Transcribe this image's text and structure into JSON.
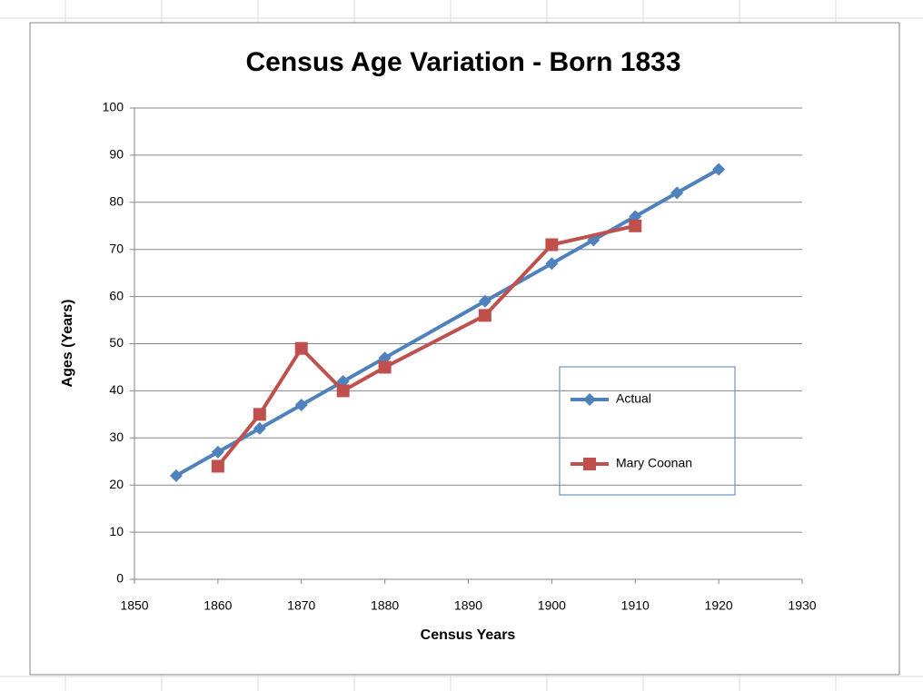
{
  "chart_data": {
    "type": "line",
    "title": "Census Age Variation - Born 1833",
    "xlabel": "Census Years",
    "ylabel": "Ages (Years)",
    "xlim": [
      1850,
      1930
    ],
    "xticks": [
      1850,
      1860,
      1870,
      1880,
      1890,
      1900,
      1910,
      1920,
      1930
    ],
    "ylim": [
      0,
      100
    ],
    "yticks": [
      0,
      10,
      20,
      30,
      40,
      50,
      60,
      70,
      80,
      90,
      100
    ],
    "grid": true,
    "legend": "right",
    "series": [
      {
        "name": "Actual",
        "color": "#4f81bd",
        "marker": "diamond",
        "x": [
          1855,
          1860,
          1865,
          1870,
          1875,
          1880,
          1892,
          1900,
          1905,
          1910,
          1915,
          1920
        ],
        "values": [
          22,
          27,
          32,
          37,
          42,
          47,
          59,
          67,
          72,
          77,
          82,
          87
        ]
      },
      {
        "name": "Mary Coonan",
        "color": "#c0504d",
        "marker": "square",
        "x": [
          1860,
          1865,
          1870,
          1875,
          1880,
          1892,
          1900,
          1910
        ],
        "values": [
          24,
          35,
          49,
          40,
          45,
          56,
          71,
          75
        ]
      }
    ]
  }
}
